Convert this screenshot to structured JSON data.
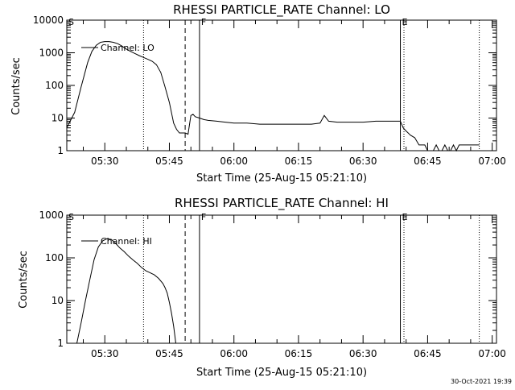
{
  "chart_data": [
    {
      "type": "line",
      "title": "RHESSI PARTICLE_RATE Channel: LO",
      "xlabel": "Start Time (25-Aug-15 05:21:10)",
      "ylabel": "Counts/sec",
      "yscale": "log",
      "xlim": [
        "05:21:10",
        "07:01:00"
      ],
      "ylim": [
        1,
        10000
      ],
      "xticks": [
        "05:30",
        "05:45",
        "06:00",
        "06:15",
        "06:30",
        "06:45",
        "07:00"
      ],
      "yticks": [
        "1",
        "10",
        "100",
        "1000",
        "10000"
      ],
      "legend": "Channel: LO",
      "legend_location": "upper-left",
      "markers": [
        {
          "label": "S",
          "x": "05:21:10",
          "style": "solid"
        },
        {
          "label": "",
          "x": "05:39:00",
          "style": "dotted"
        },
        {
          "label": "",
          "x": "05:48:40",
          "style": "dashed"
        },
        {
          "label": "F",
          "x": "05:52:00",
          "style": "solid"
        },
        {
          "label": "E",
          "x": "06:38:40",
          "style": "solid"
        },
        {
          "label": "",
          "x": "06:39:30",
          "style": "dotted"
        },
        {
          "label": "",
          "x": "06:57:00",
          "style": "dotted"
        }
      ],
      "series": [
        {
          "name": "Channel: LO",
          "x": [
            "05:21:10",
            "05:23:00",
            "05:24:30",
            "05:26:00",
            "05:27:00",
            "05:28:00",
            "05:29:00",
            "05:30:00",
            "05:31:00",
            "05:32:00",
            "05:33:00",
            "05:34:00",
            "05:35:00",
            "05:36:00",
            "05:37:00",
            "05:38:00",
            "05:39:00",
            "05:40:00",
            "05:41:00",
            "05:42:00",
            "05:43:00",
            "05:44:00",
            "05:45:00",
            "05:46:00",
            "05:46:40",
            "05:47:20",
            "05:48:00",
            "05:48:40",
            "05:49:20",
            "05:50:00",
            "05:50:30",
            "05:51:00",
            "05:52:00",
            "05:53:00",
            "05:54:00",
            "05:56:00",
            "05:58:00",
            "06:00:00",
            "06:03:00",
            "06:06:00",
            "06:09:00",
            "06:12:00",
            "06:15:00",
            "06:18:00",
            "06:20:00",
            "06:21:00",
            "06:22:00",
            "06:24:00",
            "06:27:00",
            "06:30:00",
            "06:33:00",
            "06:36:00",
            "06:38:40",
            "06:39:20",
            "06:40:00",
            "06:41:00",
            "06:42:00",
            "06:43:00",
            "06:43:40",
            "06:44:20",
            "06:45:00",
            "06:45:40",
            "06:46:20",
            "06:47:00",
            "06:47:40",
            "06:48:20",
            "06:49:00",
            "06:49:40",
            "06:50:20",
            "06:51:00",
            "06:51:40",
            "06:52:20",
            "06:53:00",
            "06:54:00",
            "06:55:00",
            "06:57:00"
          ],
          "y": [
            5,
            15,
            90,
            500,
            1100,
            1700,
            2100,
            2200,
            2200,
            2100,
            1900,
            1600,
            1300,
            1100,
            950,
            820,
            720,
            630,
            550,
            430,
            250,
            90,
            30,
            7,
            4.5,
            3.5,
            3.5,
            3.5,
            3.2,
            12,
            13,
            11,
            10,
            9,
            8.5,
            8,
            7.5,
            7,
            7,
            6.5,
            6.5,
            6.5,
            6.5,
            6.5,
            7,
            12,
            8,
            7.5,
            7.5,
            7.5,
            8,
            8,
            8,
            5,
            4,
            3,
            2.5,
            1.5,
            1.5,
            1.5,
            1,
            1,
            1,
            1.5,
            1,
            1,
            1.5,
            1,
            1,
            1.5,
            1,
            1.5,
            1.5,
            1.5,
            1.5,
            1.5
          ]
        }
      ]
    },
    {
      "type": "line",
      "title": "RHESSI PARTICLE_RATE Channel: HI",
      "xlabel": "Start Time (25-Aug-15 05:21:10)",
      "ylabel": "Counts/sec",
      "yscale": "log",
      "xlim": [
        "05:21:10",
        "07:01:00"
      ],
      "ylim": [
        1,
        1000
      ],
      "xticks": [
        "05:30",
        "05:45",
        "06:00",
        "06:15",
        "06:30",
        "06:45",
        "07:00"
      ],
      "yticks": [
        "1",
        "10",
        "100",
        "1000"
      ],
      "legend": "Channel: HI",
      "legend_location": "upper-left",
      "markers": [
        {
          "label": "S",
          "x": "05:21:10",
          "style": "solid"
        },
        {
          "label": "",
          "x": "05:39:00",
          "style": "dotted"
        },
        {
          "label": "",
          "x": "05:48:40",
          "style": "dashed"
        },
        {
          "label": "F",
          "x": "05:52:00",
          "style": "solid"
        },
        {
          "label": "E",
          "x": "06:38:40",
          "style": "solid"
        },
        {
          "label": "",
          "x": "06:39:30",
          "style": "dotted"
        },
        {
          "label": "",
          "x": "06:57:00",
          "style": "dotted"
        }
      ],
      "series": [
        {
          "name": "Channel: HI",
          "x": [
            "05:23:30",
            "05:24:30",
            "05:25:30",
            "05:26:30",
            "05:27:30",
            "05:28:30",
            "05:29:30",
            "05:30:30",
            "05:31:30",
            "05:32:30",
            "05:33:30",
            "05:34:30",
            "05:35:30",
            "05:36:30",
            "05:37:30",
            "05:38:30",
            "05:39:30",
            "05:40:30",
            "05:41:30",
            "05:42:30",
            "05:43:30",
            "05:44:00",
            "05:44:30",
            "05:45:00",
            "05:45:30",
            "05:46:00",
            "05:46:30"
          ],
          "y": [
            1,
            3,
            10,
            30,
            90,
            180,
            250,
            280,
            270,
            220,
            170,
            140,
            110,
            90,
            75,
            60,
            50,
            45,
            40,
            33,
            25,
            20,
            15,
            9,
            5,
            2.5,
            1
          ]
        }
      ]
    }
  ],
  "footer_timestamp": "30-Oct-2021 19:39"
}
